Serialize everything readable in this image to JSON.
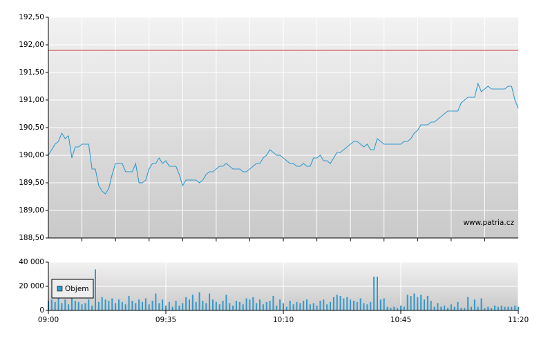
{
  "chart_data": [
    {
      "type": "line",
      "color": "#3399cc",
      "x": [
        "09:00",
        "09:01",
        "09:02",
        "09:03",
        "09:04",
        "09:05",
        "09:06",
        "09:07",
        "09:08",
        "09:09",
        "09:10",
        "09:11",
        "09:12",
        "09:13",
        "09:14",
        "09:15",
        "09:16",
        "09:17",
        "09:18",
        "09:19",
        "09:20",
        "09:21",
        "09:22",
        "09:23",
        "09:24",
        "09:25",
        "09:26",
        "09:27",
        "09:28",
        "09:29",
        "09:30",
        "09:31",
        "09:32",
        "09:33",
        "09:34",
        "09:35",
        "09:36",
        "09:37",
        "09:38",
        "09:39",
        "09:40",
        "09:41",
        "09:42",
        "09:43",
        "09:44",
        "09:45",
        "09:46",
        "09:47",
        "09:48",
        "09:49",
        "09:50",
        "09:51",
        "09:52",
        "09:53",
        "09:54",
        "09:55",
        "09:56",
        "09:57",
        "09:58",
        "09:59",
        "10:00",
        "10:01",
        "10:02",
        "10:03",
        "10:04",
        "10:05",
        "10:06",
        "10:07",
        "10:08",
        "10:09",
        "10:10",
        "10:11",
        "10:12",
        "10:13",
        "10:14",
        "10:15",
        "10:16",
        "10:17",
        "10:18",
        "10:19",
        "10:20",
        "10:21",
        "10:22",
        "10:23",
        "10:24",
        "10:25",
        "10:26",
        "10:27",
        "10:28",
        "10:29",
        "10:30",
        "10:31",
        "10:32",
        "10:33",
        "10:34",
        "10:35",
        "10:36",
        "10:37",
        "10:38",
        "10:39",
        "10:40",
        "10:41",
        "10:42",
        "10:43",
        "10:44",
        "10:45",
        "10:46",
        "10:47",
        "10:48",
        "10:49",
        "10:50",
        "10:51",
        "10:52",
        "10:53",
        "10:54",
        "10:55",
        "10:56",
        "10:57",
        "10:58",
        "10:59",
        "11:00",
        "11:01",
        "11:02",
        "11:03",
        "11:04",
        "11:05",
        "11:06",
        "11:07",
        "11:08",
        "11:09",
        "11:10",
        "11:11",
        "11:12",
        "11:13",
        "11:14",
        "11:15",
        "11:16",
        "11:17",
        "11:18",
        "11:19",
        "11:20"
      ],
      "values": [
        190.0,
        190.1,
        190.2,
        190.25,
        190.4,
        190.3,
        190.35,
        189.95,
        190.15,
        190.15,
        190.2,
        190.2,
        190.2,
        189.75,
        189.75,
        189.45,
        189.35,
        189.3,
        189.4,
        189.65,
        189.85,
        189.85,
        189.85,
        189.7,
        189.7,
        189.7,
        189.85,
        189.5,
        189.5,
        189.55,
        189.75,
        189.85,
        189.85,
        189.95,
        189.85,
        189.9,
        189.8,
        189.8,
        189.8,
        189.65,
        189.45,
        189.55,
        189.55,
        189.55,
        189.55,
        189.5,
        189.55,
        189.65,
        189.7,
        189.7,
        189.75,
        189.8,
        189.8,
        189.85,
        189.8,
        189.75,
        189.75,
        189.75,
        189.7,
        189.7,
        189.75,
        189.8,
        189.85,
        189.85,
        189.95,
        190.0,
        190.1,
        190.05,
        190.0,
        190.0,
        189.95,
        189.9,
        189.85,
        189.85,
        189.8,
        189.8,
        189.85,
        189.8,
        189.8,
        189.95,
        189.95,
        190.0,
        189.9,
        189.9,
        189.85,
        189.95,
        190.05,
        190.05,
        190.1,
        190.15,
        190.2,
        190.25,
        190.25,
        190.2,
        190.15,
        190.2,
        190.1,
        190.1,
        190.3,
        190.25,
        190.2,
        190.2,
        190.2,
        190.2,
        190.2,
        190.2,
        190.25,
        190.25,
        190.3,
        190.4,
        190.45,
        190.55,
        190.55,
        190.55,
        190.6,
        190.6,
        190.65,
        190.7,
        190.75,
        190.8,
        190.8,
        190.8,
        190.8,
        190.95,
        191.0,
        191.05,
        191.05,
        191.05,
        191.3,
        191.15,
        191.2,
        191.25,
        191.2,
        191.2,
        191.2,
        191.2,
        191.2,
        191.25,
        191.25,
        191.0,
        190.85
      ],
      "xlim": [
        "09:00",
        "11:20"
      ],
      "xgrid": [
        "09:10",
        "09:20",
        "09:30",
        "09:40",
        "09:50",
        "10:00",
        "10:10",
        "10:20",
        "10:30",
        "10:40",
        "10:50",
        "11:00",
        "11:10"
      ],
      "ylim": [
        188.5,
        192.5
      ],
      "yticks": [
        {
          "value": 188.5,
          "label": "188,50"
        },
        {
          "value": 189,
          "label": "189,00"
        },
        {
          "value": 189.5,
          "label": "189,50"
        },
        {
          "value": 190,
          "label": "190,00"
        },
        {
          "value": 190.5,
          "label": "190,50"
        },
        {
          "value": 191,
          "label": "191,00"
        },
        {
          "value": 191.5,
          "label": "191,50"
        },
        {
          "value": 192,
          "label": "192,00"
        },
        {
          "value": 192.5,
          "label": "192,50"
        }
      ],
      "ref_line": {
        "value": 191.9,
        "color": "#cc3333"
      },
      "grid": true,
      "watermark": "www.patria.cz"
    },
    {
      "type": "bar",
      "legend": "upper left",
      "x": [
        "09:00",
        "09:01",
        "09:02",
        "09:03",
        "09:04",
        "09:05",
        "09:06",
        "09:07",
        "09:08",
        "09:09",
        "09:10",
        "09:11",
        "09:12",
        "09:13",
        "09:14",
        "09:15",
        "09:16",
        "09:17",
        "09:18",
        "09:19",
        "09:20",
        "09:21",
        "09:22",
        "09:23",
        "09:24",
        "09:25",
        "09:26",
        "09:27",
        "09:28",
        "09:29",
        "09:30",
        "09:31",
        "09:32",
        "09:33",
        "09:34",
        "09:35",
        "09:36",
        "09:37",
        "09:38",
        "09:39",
        "09:40",
        "09:41",
        "09:42",
        "09:43",
        "09:44",
        "09:45",
        "09:46",
        "09:47",
        "09:48",
        "09:49",
        "09:50",
        "09:51",
        "09:52",
        "09:53",
        "09:54",
        "09:55",
        "09:56",
        "09:57",
        "09:58",
        "09:59",
        "10:00",
        "10:01",
        "10:02",
        "10:03",
        "10:04",
        "10:05",
        "10:06",
        "10:07",
        "10:08",
        "10:09",
        "10:10",
        "10:11",
        "10:12",
        "10:13",
        "10:14",
        "10:15",
        "10:16",
        "10:17",
        "10:18",
        "10:19",
        "10:20",
        "10:21",
        "10:22",
        "10:23",
        "10:24",
        "10:25",
        "10:26",
        "10:27",
        "10:28",
        "10:29",
        "10:30",
        "10:31",
        "10:32",
        "10:33",
        "10:34",
        "10:35",
        "10:36",
        "10:37",
        "10:38",
        "10:39",
        "10:40",
        "10:41",
        "10:42",
        "10:43",
        "10:44",
        "10:45",
        "10:46",
        "10:47",
        "10:48",
        "10:49",
        "10:50",
        "10:51",
        "10:52",
        "10:53",
        "10:54",
        "10:55",
        "10:56",
        "10:57",
        "10:58",
        "10:59",
        "11:00",
        "11:01",
        "11:02",
        "11:03",
        "11:04",
        "11:05",
        "11:06",
        "11:07",
        "11:08",
        "11:09",
        "11:10",
        "11:11",
        "11:12",
        "11:13",
        "11:14",
        "11:15",
        "11:16",
        "11:17",
        "11:18",
        "11:19",
        "11:20"
      ],
      "series": [
        {
          "name": "Objem",
          "color": "#3399cc",
          "values": [
            8000,
            9000,
            7000,
            10000,
            6000,
            9000,
            5000,
            12000,
            8000,
            7000,
            5000,
            6000,
            9000,
            4000,
            34000,
            7000,
            11000,
            9000,
            8000,
            10000,
            6000,
            9000,
            7000,
            5000,
            12000,
            8000,
            6000,
            9000,
            7000,
            10000,
            5000,
            8000,
            14000,
            6000,
            9000,
            4000,
            7000,
            3000,
            8000,
            4000,
            6000,
            11000,
            9000,
            13000,
            7000,
            15000,
            8000,
            6000,
            14000,
            9000,
            7000,
            5000,
            8000,
            13000,
            6000,
            4000,
            8000,
            7000,
            5000,
            10000,
            9000,
            11000,
            6000,
            9000,
            5000,
            7000,
            8000,
            12000,
            4000,
            9000,
            6000,
            3000,
            8000,
            5000,
            7000,
            6000,
            8000,
            9000,
            5000,
            6000,
            4000,
            8000,
            9000,
            5000,
            7000,
            11000,
            13000,
            12000,
            10000,
            11000,
            9000,
            8000,
            7000,
            10000,
            6000,
            5000,
            7000,
            28000,
            28000,
            9000,
            10000,
            3000,
            2000,
            3000,
            2000,
            4000,
            3000,
            13000,
            12000,
            14000,
            11000,
            13000,
            9000,
            12000,
            8000,
            3000,
            6000,
            3000,
            4000,
            2000,
            5000,
            3000,
            7000,
            2000,
            2000,
            11000,
            3000,
            9000,
            3000,
            10000,
            2000,
            3000,
            2000,
            4000,
            3000,
            4000,
            3000,
            3000,
            3000,
            4000,
            3000
          ]
        }
      ],
      "xlim": [
        "09:00",
        "11:20"
      ],
      "xticks": [
        "09:00",
        "09:35",
        "10:10",
        "10:45",
        "11:20"
      ],
      "ylim": [
        0,
        40000
      ],
      "yticks": [
        0,
        {
          "value": 20000,
          "label": "20 000"
        },
        {
          "value": 40000,
          "label": "40 000"
        }
      ],
      "grid": true
    }
  ]
}
